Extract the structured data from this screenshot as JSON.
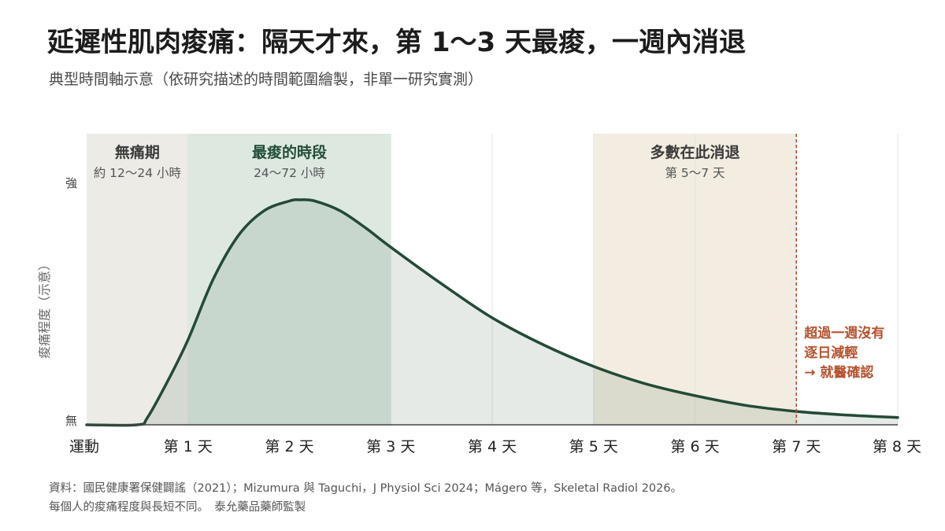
{
  "title": "延遲性肌肉痠痛：隔天才來，第 1〜3 天最痠，一週內消退",
  "subtitle": "典型時間軸示意（依研究描述的時間範圍繪製，非單一研究實測）",
  "source_line1": "資料：國民健康署保健闢謠（2021）；Mizumura 與 Taguchi，J Physiol Sci 2024；Mágero 等，Skeletal Radiol 2026。",
  "source_line2": "每個人的痠痛程度與長短不同。　泰允藥品藥師監製",
  "chart_data": {
    "type": "area",
    "ylabel": "痠痛程度（示意）",
    "y_tick_labels": {
      "high": "強",
      "low": "無"
    },
    "xlim": [
      0,
      8
    ],
    "ylim": [
      0,
      1
    ],
    "x_ticks": [
      {
        "value": 0,
        "label": "運動"
      },
      {
        "value": 1,
        "label": "第 1 天"
      },
      {
        "value": 2,
        "label": "第 2 天"
      },
      {
        "value": 3,
        "label": "第 3 天"
      },
      {
        "value": 4,
        "label": "第 4 天"
      },
      {
        "value": 5,
        "label": "第 5 天"
      },
      {
        "value": 6,
        "label": "第 6 天"
      },
      {
        "value": 7,
        "label": "第 7 天"
      },
      {
        "value": 8,
        "label": "第 8 天"
      }
    ],
    "x_unit": "天",
    "series": [
      {
        "x": [
          0,
          0.5,
          0.6,
          0.8,
          1.0,
          1.25,
          1.5,
          1.75,
          2.0,
          2.1,
          2.25,
          2.5,
          2.75,
          3.0,
          3.5,
          4.0,
          4.5,
          5.0,
          5.5,
          6.0,
          6.5,
          7.0,
          7.5,
          8.0
        ],
        "y": [
          0,
          0,
          0.03,
          0.18,
          0.35,
          0.6,
          0.78,
          0.88,
          0.92,
          0.925,
          0.92,
          0.88,
          0.81,
          0.73,
          0.58,
          0.44,
          0.33,
          0.24,
          0.17,
          0.12,
          0.08,
          0.055,
          0.04,
          0.03
        ]
      }
    ],
    "phases": [
      {
        "name": "無痛期",
        "detail": "約 12〜24 小時",
        "start": 0,
        "end": 1,
        "color": "#ecebe6",
        "label_color": "#3a3a3a"
      },
      {
        "name": "最痠的時段",
        "detail": "24〜72 小時",
        "start": 1,
        "end": 3,
        "color": "#dde9e0",
        "label_color": "#234d37"
      },
      {
        "name": "多數在此消退",
        "detail": "第 5〜7 天",
        "start": 5,
        "end": 7,
        "color": "#f2ede0",
        "label_color": "#3a3a3a"
      }
    ],
    "marker": {
      "x": 7,
      "lines": [
        "超過一週沒有",
        "逐日減輕",
        "→ 就醫確認"
      ],
      "color": "#b5522e"
    },
    "colors": {
      "line": "#234a36",
      "area": "#dfe6e2",
      "grid": "#e3e3e3",
      "axis": "#444444"
    },
    "grid": true
  }
}
